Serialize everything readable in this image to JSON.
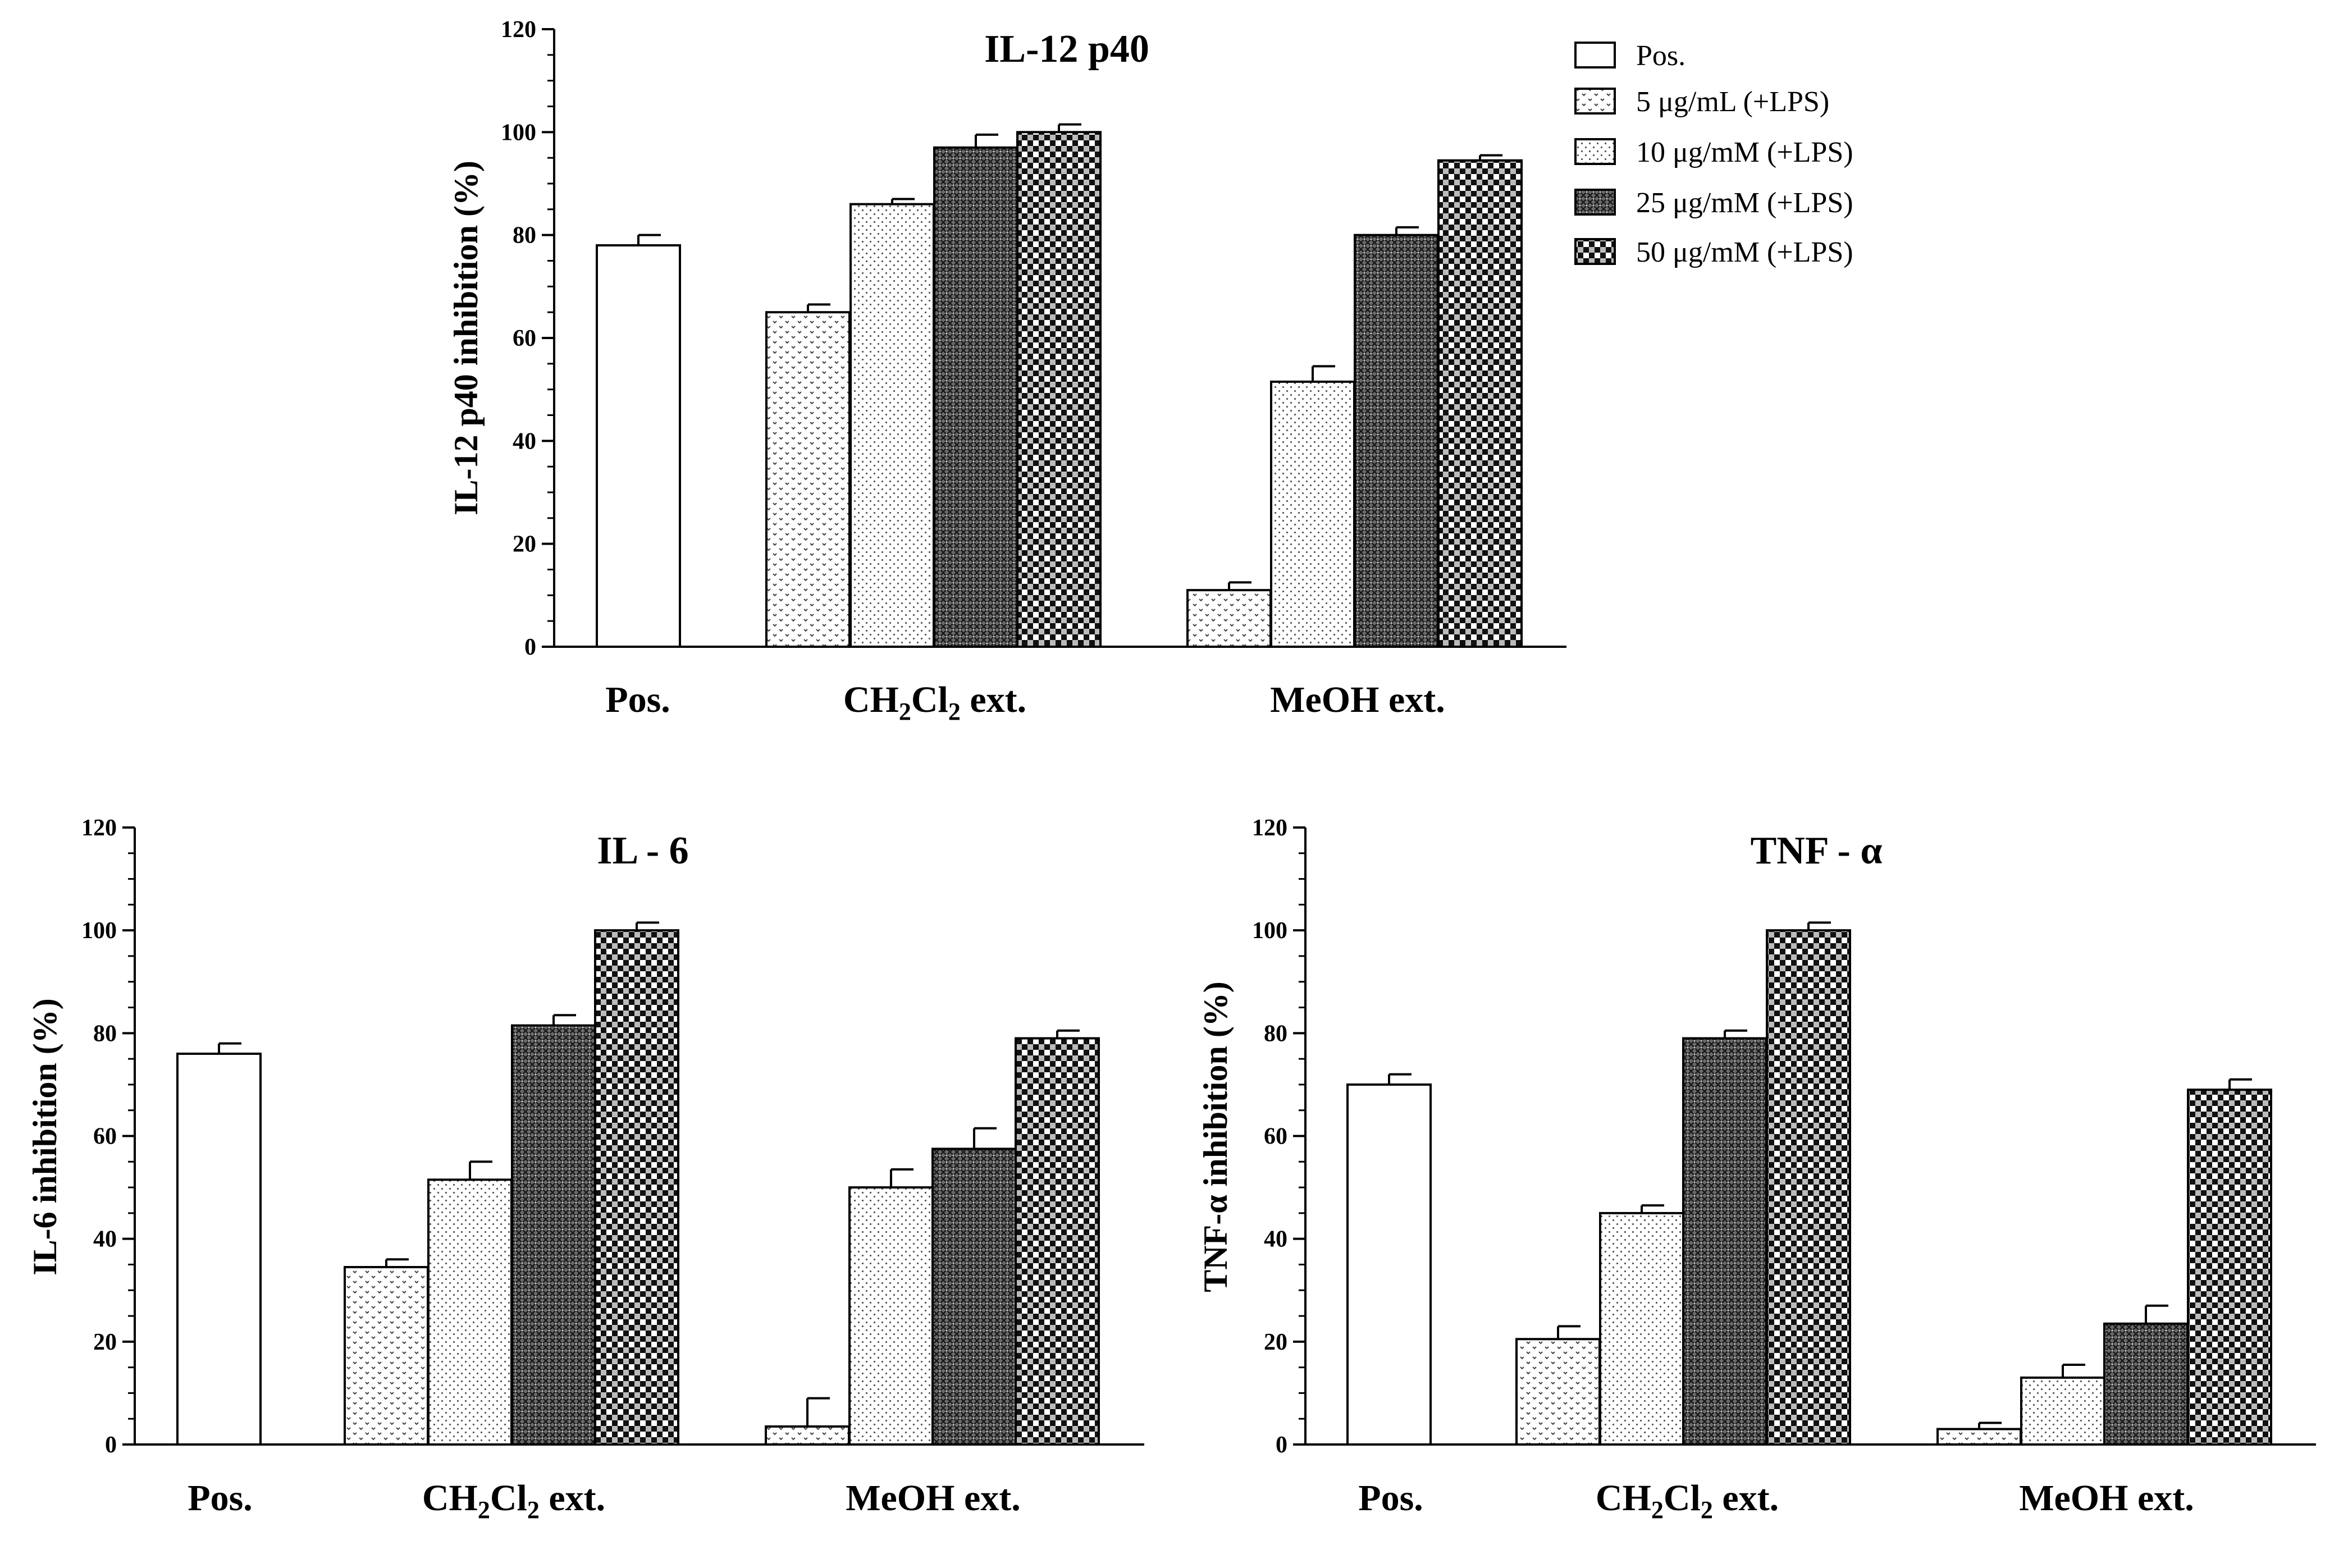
{
  "chart_data": [
    {
      "type": "bar",
      "title": "IL-12 p40",
      "ylabel": "IL-12 p40 inhibition (%)",
      "xlabel": "",
      "ylim": [
        0,
        120
      ],
      "yticks": [
        0,
        20,
        40,
        60,
        80,
        100,
        120
      ],
      "groups": [
        {
          "label": "Pos.",
          "bars": [
            {
              "series": "Pos.",
              "value": 78,
              "error": 2
            }
          ]
        },
        {
          "label": "CH2Cl2 ext.",
          "label_main": "CH",
          "label_sub1": "2",
          "label_mid": "Cl",
          "label_sub2": "2",
          "label_tail": " ext.",
          "bars": [
            {
              "series": "5 μg/mL (+LPS)",
              "value": 65,
              "error": 1.5
            },
            {
              "series": "10 μg/mM (+LPS)",
              "value": 86,
              "error": 1
            },
            {
              "series": "25 μg/mM (+LPS)",
              "value": 97,
              "error": 2.5
            },
            {
              "series": "50 μg/mM (+LPS)",
              "value": 100,
              "error": 1.5
            }
          ]
        },
        {
          "label": "MeOH ext.",
          "bars": [
            {
              "series": "5 μg/mL (+LPS)",
              "value": 11,
              "error": 1.5
            },
            {
              "series": "10 μg/mM (+LPS)",
              "value": 51.5,
              "error": 3
            },
            {
              "series": "25 μg/mM (+LPS)",
              "value": 80,
              "error": 1.5
            },
            {
              "series": "50 μg/mM (+LPS)",
              "value": 94.5,
              "error": 1
            }
          ]
        }
      ]
    },
    {
      "type": "bar",
      "title": "IL - 6",
      "ylabel": "IL-6 inhibition (%)",
      "xlabel": "",
      "ylim": [
        0,
        120
      ],
      "yticks": [
        0,
        20,
        40,
        60,
        80,
        100,
        120
      ],
      "groups": [
        {
          "label": "Pos.",
          "bars": [
            {
              "series": "Pos.",
              "value": 76,
              "error": 2
            }
          ]
        },
        {
          "label": "CH2Cl2 ext.",
          "label_main": "CH",
          "label_sub1": "2",
          "label_mid": "Cl",
          "label_sub2": "2",
          "label_tail": " ext.",
          "bars": [
            {
              "series": "5 μg/mL (+LPS)",
              "value": 34.5,
              "error": 1.5
            },
            {
              "series": "10 μg/mM (+LPS)",
              "value": 51.5,
              "error": 3.5
            },
            {
              "series": "25 μg/mM (+LPS)",
              "value": 81.5,
              "error": 2
            },
            {
              "series": "50 μg/mM (+LPS)",
              "value": 100,
              "error": 1.5
            }
          ]
        },
        {
          "label": "MeOH ext.",
          "bars": [
            {
              "series": "5 μg/mL (+LPS)",
              "value": 3.5,
              "error": 5.5
            },
            {
              "series": "10 μg/mM (+LPS)",
              "value": 50,
              "error": 3.5
            },
            {
              "series": "25 μg/mM (+LPS)",
              "value": 57.5,
              "error": 4
            },
            {
              "series": "50 μg/mM (+LPS)",
              "value": 79,
              "error": 1.5
            }
          ]
        }
      ]
    },
    {
      "type": "bar",
      "title": "TNF - α",
      "ylabel": "TNF-α inhibition (%)",
      "xlabel": "",
      "ylim": [
        0,
        120
      ],
      "yticks": [
        0,
        20,
        40,
        60,
        80,
        100,
        120
      ],
      "groups": [
        {
          "label": "Pos.",
          "bars": [
            {
              "series": "Pos.",
              "value": 70,
              "error": 2
            }
          ]
        },
        {
          "label": "CH2Cl2 ext.",
          "label_main": "CH",
          "label_sub1": "2",
          "label_mid": "Cl",
          "label_sub2": "2",
          "label_tail": " ext.",
          "bars": [
            {
              "series": "5 μg/mL (+LPS)",
              "value": 20.5,
              "error": 2.5
            },
            {
              "series": "10 μg/mM (+LPS)",
              "value": 45,
              "error": 1.5
            },
            {
              "series": "25 μg/mM (+LPS)",
              "value": 79,
              "error": 1.5
            },
            {
              "series": "50 μg/mM (+LPS)",
              "value": 100,
              "error": 1.5
            }
          ]
        },
        {
          "label": "MeOH ext.",
          "bars": [
            {
              "series": "5 μg/mL (+LPS)",
              "value": 3,
              "error": 1.2
            },
            {
              "series": "10 μg/mM (+LPS)",
              "value": 13,
              "error": 2.5
            },
            {
              "series": "25 μg/mM (+LPS)",
              "value": 23.5,
              "error": 3.5
            },
            {
              "series": "50 μg/mM (+LPS)",
              "value": 69,
              "error": 2
            }
          ]
        }
      ]
    }
  ],
  "legend": {
    "placement": "top-right",
    "entries": [
      {
        "label": "Pos.",
        "pattern": "white"
      },
      {
        "label": "5  μg/mL (+LPS)",
        "pattern": "p5"
      },
      {
        "label": "10  μg/mM (+LPS)",
        "pattern": "p10"
      },
      {
        "label": "25  μg/mM (+LPS)",
        "pattern": "p25"
      },
      {
        "label": "50  μg/mM (+LPS)",
        "pattern": "p50"
      }
    ]
  },
  "series_patterns": {
    "Pos.": "white",
    "5 μg/mL (+LPS)": "p5",
    "10 μg/mM (+LPS)": "p10",
    "25 μg/mM (+LPS)": "p25",
    "50 μg/mM (+LPS)": "p50"
  }
}
